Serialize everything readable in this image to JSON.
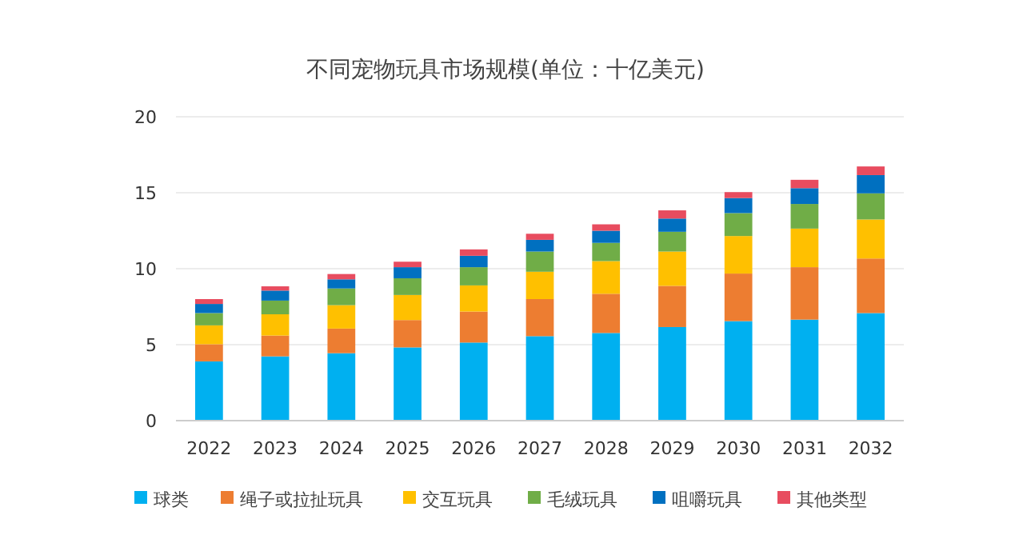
{
  "chart_data": {
    "type": "bar",
    "stacked": true,
    "title": "不同宠物玩具市场规模(单位：十亿美元)",
    "categories": [
      "2022",
      "2023",
      "2024",
      "2025",
      "2026",
      "2027",
      "2028",
      "2029",
      "2030",
      "2031",
      "2032"
    ],
    "series": [
      {
        "name": "球类",
        "color": "#00b0f0",
        "values": [
          3.9,
          4.23,
          4.44,
          4.82,
          5.14,
          5.56,
          5.77,
          6.16,
          6.55,
          6.65,
          7.08
        ]
      },
      {
        "name": "绳子或拉扯玩具",
        "color": "#ed7d31",
        "values": [
          1.13,
          1.37,
          1.62,
          1.8,
          2.04,
          2.44,
          2.58,
          2.71,
          3.13,
          3.45,
          3.59
        ]
      },
      {
        "name": "交互玩具",
        "color": "#ffc000",
        "values": [
          1.24,
          1.4,
          1.54,
          1.65,
          1.72,
          1.8,
          2.15,
          2.26,
          2.47,
          2.54,
          2.57
        ]
      },
      {
        "name": "毛绒玩具",
        "color": "#70ad47",
        "values": [
          0.81,
          0.9,
          1.1,
          1.1,
          1.2,
          1.33,
          1.2,
          1.3,
          1.51,
          1.62,
          1.72
        ]
      },
      {
        "name": "咀嚼玩具",
        "color": "#0070c0",
        "values": [
          0.6,
          0.66,
          0.6,
          0.73,
          0.75,
          0.77,
          0.8,
          0.87,
          0.99,
          1.04,
          1.2
        ]
      },
      {
        "name": "其他类型",
        "color": "#e84c5f",
        "values": [
          0.32,
          0.28,
          0.35,
          0.36,
          0.42,
          0.4,
          0.42,
          0.54,
          0.39,
          0.55,
          0.57
        ]
      }
    ],
    "ylim": [
      0,
      20
    ],
    "yticks": [
      0,
      5,
      10,
      15,
      20
    ],
    "grid": "y",
    "legend": "bottom"
  }
}
